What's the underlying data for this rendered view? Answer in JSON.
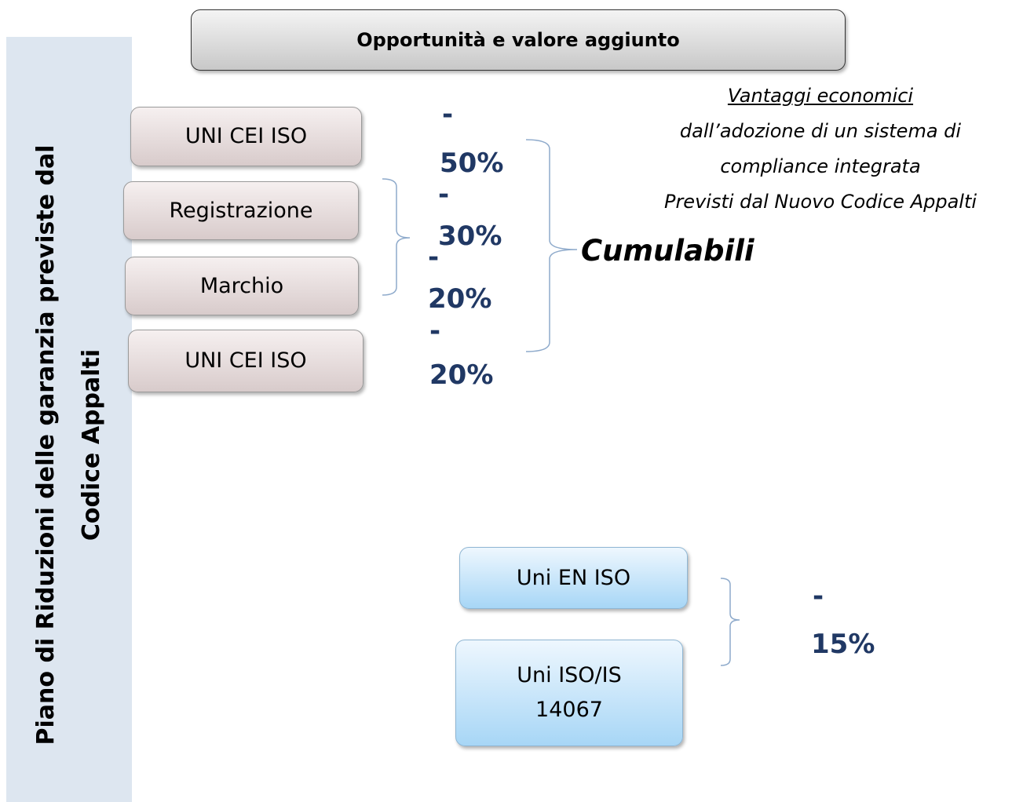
{
  "sidebar": {
    "lines": [
      "Piano di Riduzioni delle garanzia previste dal",
      "Codice Appalti"
    ]
  },
  "header": {
    "title": "Opportunità e valore aggiunto"
  },
  "note": {
    "lines": [
      "Vantaggi economici",
      "dall’adozione di un sistema di",
      "compliance integrata",
      "Previsti dal Nuovo Codice Appalti"
    ]
  },
  "boxes": [
    {
      "label": "UNI CEI ISO"
    },
    {
      "label": "Registrazione"
    },
    {
      "label": "Marchio"
    },
    {
      "label": "UNI CEI ISO"
    },
    {
      "label": "Uni EN ISO"
    },
    {
      "label": "Uni ISO/IS 14067"
    }
  ],
  "reductions": [
    [
      "-",
      "50%"
    ],
    [
      "-",
      "30%"
    ],
    [
      "-",
      "20%"
    ],
    [
      "-",
      "20%"
    ],
    [
      "-",
      "15%"
    ]
  ],
  "cumulative_label": "Cumulabili"
}
